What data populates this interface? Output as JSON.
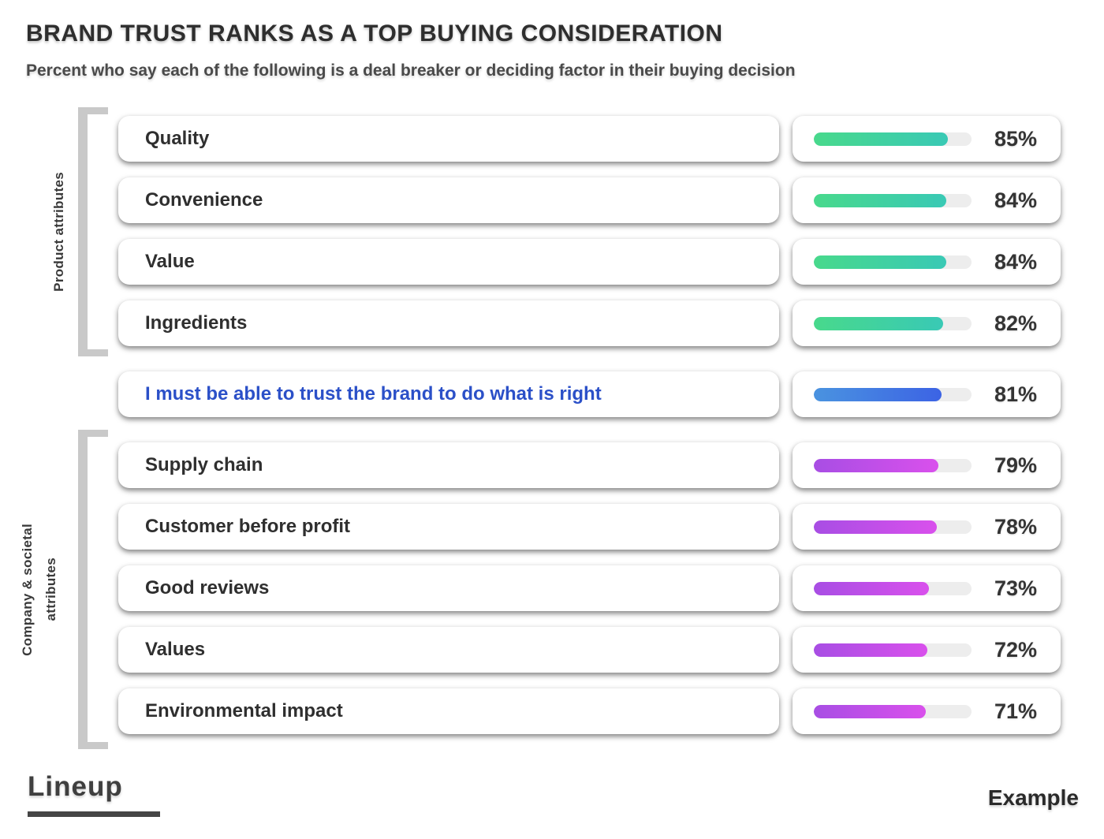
{
  "header": {
    "title": "BRAND TRUST RANKS AS A TOP BUYING CONSIDERATION",
    "subtitle": "Percent who say each of the following is a deal breaker or deciding factor in their buying decision"
  },
  "groups": {
    "group1": {
      "label_line1": "Product attributes"
    },
    "group2": {
      "label_line1": "Company & societal",
      "label_line2": "attributes"
    }
  },
  "chart_data": {
    "type": "bar",
    "orientation": "horizontal",
    "unit": "%",
    "xlim": [
      0,
      100
    ],
    "title": "BRAND TRUST RANKS AS A TOP BUYING CONSIDERATION",
    "categories": [
      "Quality",
      "Convenience",
      "Value",
      "Ingredients",
      "I must be able to trust the brand to do what is right",
      "Supply chain",
      "Customer before profit",
      "Good reviews",
      "Values",
      "Environmental impact"
    ],
    "values": [
      85,
      84,
      84,
      82,
      81,
      79,
      78,
      73,
      72,
      71
    ],
    "rows": [
      {
        "label": "Quality",
        "value": 85,
        "display": "85%",
        "theme": "green",
        "group": "product",
        "highlight": false
      },
      {
        "label": "Convenience",
        "value": 84,
        "display": "84%",
        "theme": "green",
        "group": "product",
        "highlight": false
      },
      {
        "label": "Value",
        "value": 84,
        "display": "84%",
        "theme": "green",
        "group": "product",
        "highlight": false
      },
      {
        "label": "Ingredients",
        "value": 82,
        "display": "82%",
        "theme": "green",
        "group": "product",
        "highlight": false
      },
      {
        "label": "I must be able to trust the brand to do what is right",
        "value": 81,
        "display": "81%",
        "theme": "blue",
        "group": "none",
        "highlight": true
      },
      {
        "label": "Supply chain",
        "value": 79,
        "display": "79%",
        "theme": "purple",
        "group": "company",
        "highlight": false
      },
      {
        "label": "Customer before profit",
        "value": 78,
        "display": "78%",
        "theme": "purple",
        "group": "company",
        "highlight": false
      },
      {
        "label": "Good reviews",
        "value": 73,
        "display": "73%",
        "theme": "purple",
        "group": "company",
        "highlight": false
      },
      {
        "label": "Values",
        "value": 72,
        "display": "72%",
        "theme": "purple",
        "group": "company",
        "highlight": false
      },
      {
        "label": "Environmental impact",
        "value": 71,
        "display": "71%",
        "theme": "purple",
        "group": "company",
        "highlight": false
      }
    ],
    "legend": [],
    "grid": false
  },
  "colors": {
    "green_start": "#48d98c",
    "green_end": "#39c9b5",
    "blue_start": "#4a93e0",
    "blue_end": "#3c63e4",
    "purple_start": "#a84ee4",
    "purple_end": "#d950ec",
    "track": "#ededed",
    "highlight_text": "#2b50c8",
    "bracket": "#c9c9c9"
  },
  "footer": {
    "brand": "Lineup",
    "attribution": "Example"
  }
}
